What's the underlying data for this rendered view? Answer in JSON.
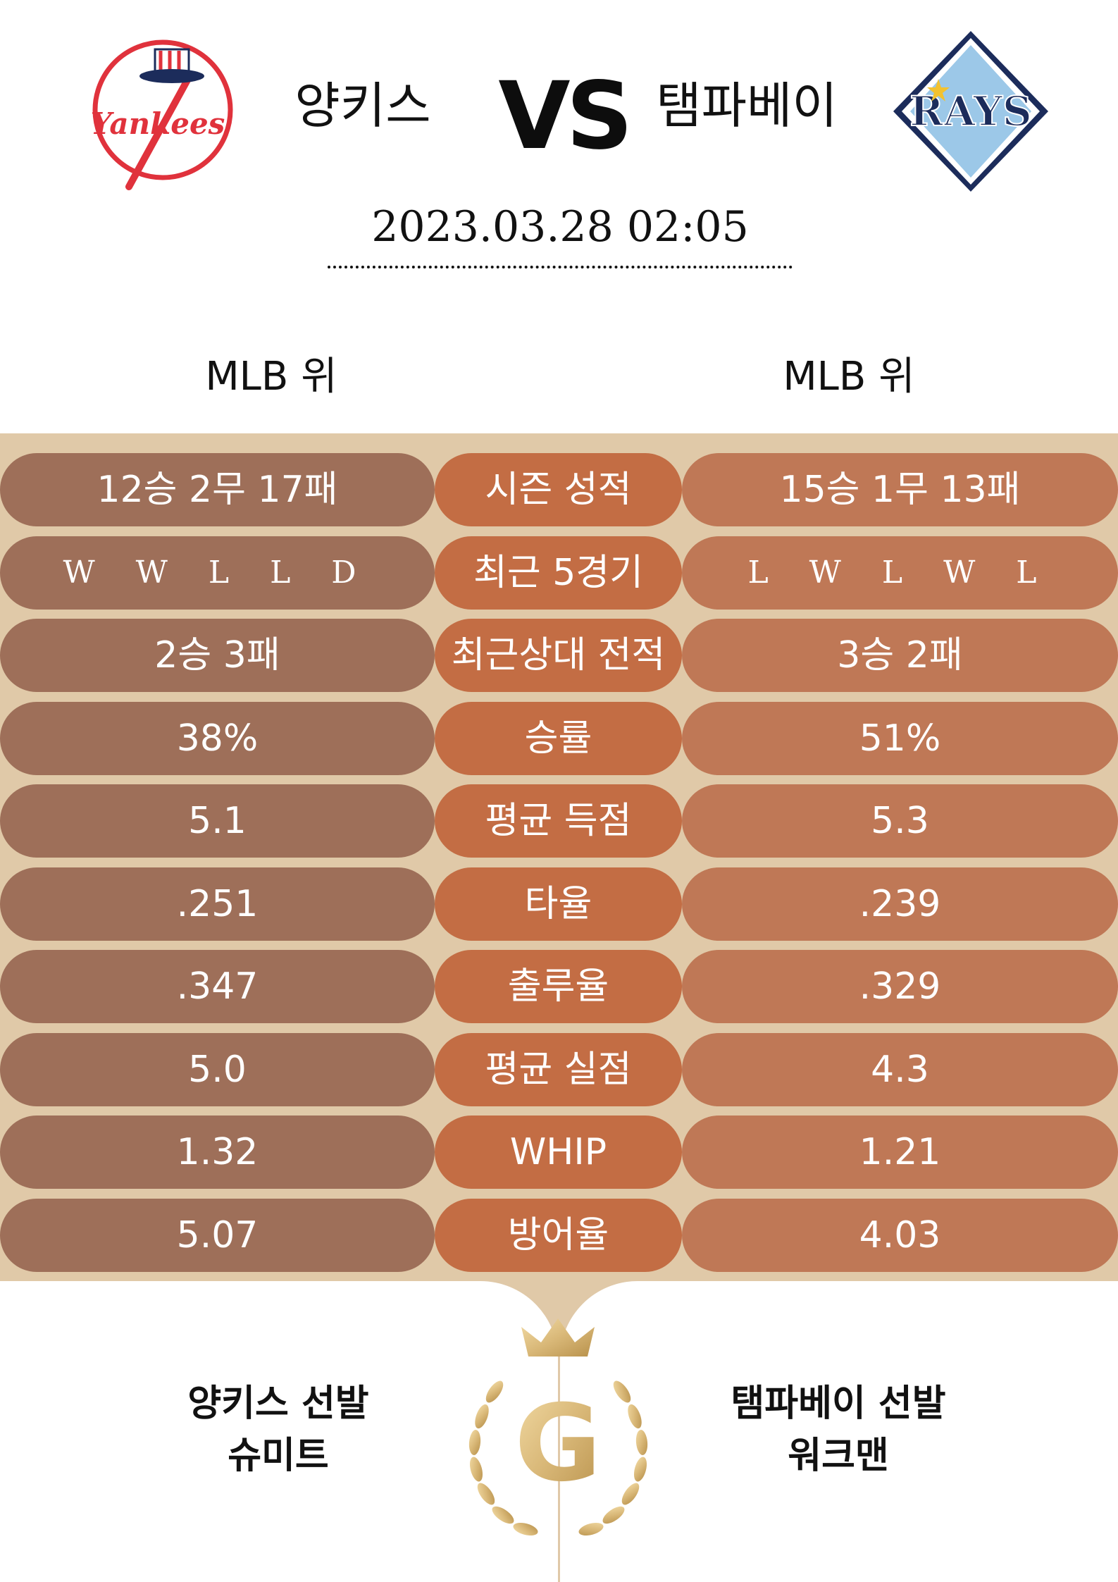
{
  "header": {
    "home_team": "양키스",
    "vs": "VS",
    "away_team": "탬파베이",
    "datetime": "2023.03.28  02:05",
    "home_league": "MLB 위",
    "away_league": "MLB 위",
    "home_logo_text": "Yankees",
    "away_logo_text": "RAYS"
  },
  "stats": [
    {
      "home": "12승 2무 17패",
      "label": "시즌 성적",
      "away": "15승 1무 13패"
    },
    {
      "home": "W W L L D",
      "label": "최근 5경기",
      "away": "L W L W L"
    },
    {
      "home": "2승 3패",
      "label": "최근상대 전적",
      "away": "3승 2패"
    },
    {
      "home": "38%",
      "label": "승률",
      "away": "51%"
    },
    {
      "home": "5.1",
      "label": "평균 득점",
      "away": "5.3"
    },
    {
      "home": ".251",
      "label": "타율",
      "away": ".239"
    },
    {
      "home": ".347",
      "label": "출루율",
      "away": ".329"
    },
    {
      "home": "5.0",
      "label": "평균 실점",
      "away": "4.3"
    },
    {
      "home": "1.32",
      "label": "WHIP",
      "away": "1.21"
    },
    {
      "home": "5.07",
      "label": "방어율",
      "away": "4.03"
    }
  ],
  "starters": {
    "home_title": "양키스 선발",
    "home_name": "슈미트",
    "away_title": "탬파베이 선발",
    "away_name": "워크맨"
  },
  "emblem": {
    "letter": "G"
  },
  "colors": {
    "background": "#e0c9a8",
    "home_pill": "#9e6f59",
    "label_pill": "#c36d44",
    "away_pill": "#bf7856",
    "gold": "#d9b878",
    "yankees_red": "#e0323c",
    "rays_navy": "#1c2c5b"
  }
}
